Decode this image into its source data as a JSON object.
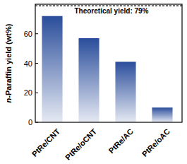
{
  "chart_data": {
    "type": "bar",
    "y_label": "n-Paraffin yield (wt%)",
    "categories": [
      "PtRe/CNT",
      "PtRe/oCNT",
      "PtRe/AC",
      "PtRe/oAC"
    ],
    "values": [
      72,
      57,
      41,
      10
    ],
    "color": "#2a4d9b",
    "ylim": [
      0,
      80
    ],
    "yticks": [
      0,
      20,
      40,
      60
    ],
    "grid": false,
    "annotations": [
      {
        "text": "Theoretical yield: 79%",
        "value": 79
      }
    ]
  }
}
